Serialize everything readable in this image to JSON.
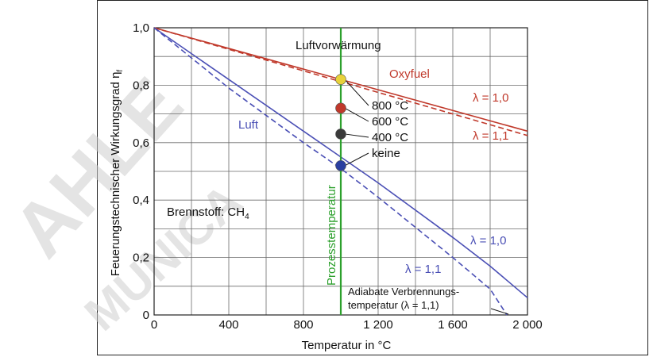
{
  "chart_data": {
    "type": "line",
    "xlabel": "Temperatur in °C",
    "ylabel": "Feuerungstechnischer Wirkungsgrad η",
    "ylabel_sub": "f",
    "xlim": [
      0,
      2000
    ],
    "ylim": [
      0,
      1.0
    ],
    "x_ticks": [
      0,
      400,
      800,
      1200,
      1600,
      2000
    ],
    "x_tick_labels": [
      "0",
      "400",
      "800",
      "1 200",
      "1 600",
      "2 000"
    ],
    "y_ticks": [
      0,
      0.2,
      0.4,
      0.6,
      0.8,
      1.0
    ],
    "y_tick_labels": [
      "0",
      "0,2",
      "0,4",
      "0,6",
      "0,8",
      "1,0"
    ],
    "grid": true,
    "series": [
      {
        "name": "Oxyfuel",
        "lambda": "λ = 1,0",
        "color": "#c0392b",
        "dash": false,
        "x": [
          0,
          2000
        ],
        "y": [
          1.0,
          0.64
        ]
      },
      {
        "name": "Oxyfuel",
        "lambda": "λ = 1,1",
        "color": "#c0392b",
        "dash": true,
        "x": [
          0,
          2000
        ],
        "y": [
          1.0,
          0.625
        ]
      },
      {
        "name": "Luft",
        "lambda": "λ = 1,0",
        "color": "#4a4fb5",
        "dash": false,
        "x": [
          0,
          400,
          800,
          1000,
          1200,
          1600,
          1800,
          2000
        ],
        "y": [
          1.0,
          0.82,
          0.64,
          0.55,
          0.46,
          0.27,
          0.17,
          0.06
        ]
      },
      {
        "name": "Luft",
        "lambda": "λ = 1,1",
        "color": "#4a4fb5",
        "dash": true,
        "x": [
          0,
          400,
          800,
          1000,
          1200,
          1600,
          1800,
          1890
        ],
        "y": [
          1.0,
          0.79,
          0.6,
          0.51,
          0.41,
          0.2,
          0.09,
          0.0
        ]
      }
    ],
    "process_line": {
      "x": 1000,
      "label": "Prozesstemperatur",
      "color": "#2ca02c"
    },
    "points": [
      {
        "label": "800 °C",
        "x": 1000,
        "y": 0.82,
        "color": "#e8d23a"
      },
      {
        "label": "600 °C",
        "x": 1000,
        "y": 0.72,
        "color": "#c0392b"
      },
      {
        "label": "400 °C",
        "x": 1000,
        "y": 0.63,
        "color": "#3a3a3a"
      },
      {
        "label": "keine",
        "x": 1000,
        "y": 0.52,
        "color": "#2a3fa0"
      }
    ],
    "annotations": {
      "luftvorwaermung": "Luftvorwärmung",
      "oxyfuel": "Oxyfuel",
      "luft": "Luft",
      "brennstoff": "Brennstoff: CH",
      "brennstoff_sub": "4",
      "lambda_10": "λ = 1,0",
      "lambda_11": "λ = 1,1",
      "adiabat_line1": "Adiabate Verbrennungs-",
      "adiabat_line2": "temperatur (λ = 1,1)"
    }
  }
}
